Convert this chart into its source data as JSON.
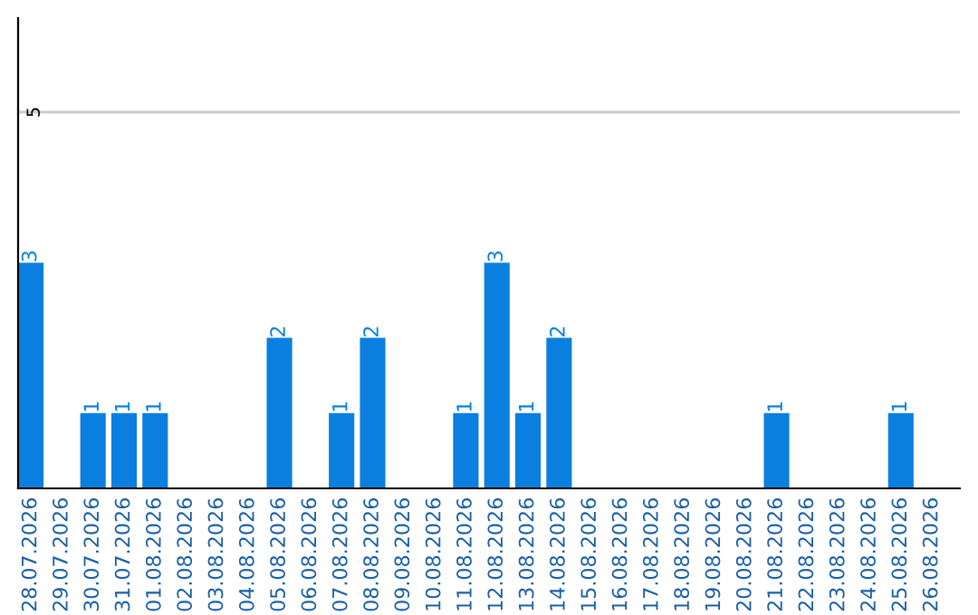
{
  "chart_data": {
    "type": "bar",
    "categories": [
      "28.07.2026",
      "29.07.2026",
      "30.07.2026",
      "31.07.2026",
      "01.08.2026",
      "02.08.2026",
      "03.08.2026",
      "04.08.2026",
      "05.08.2026",
      "06.08.2026",
      "07.08.2026",
      "08.08.2026",
      "09.08.2026",
      "10.08.2026",
      "11.08.2026",
      "12.08.2026",
      "13.08.2026",
      "14.08.2026",
      "15.08.2026",
      "16.08.2026",
      "17.08.2026",
      "18.08.2026",
      "19.08.2026",
      "20.08.2026",
      "21.08.2026",
      "22.08.2026",
      "23.08.2026",
      "24.08.2026",
      "25.08.2026",
      "26.08.2026"
    ],
    "values": [
      3,
      0,
      1,
      1,
      1,
      0,
      0,
      0,
      2,
      0,
      1,
      2,
      0,
      0,
      1,
      3,
      1,
      2,
      0,
      0,
      0,
      0,
      0,
      0,
      1,
      0,
      0,
      0,
      1,
      0
    ],
    "value_labels": [
      "3",
      null,
      "1",
      "1",
      "1",
      null,
      null,
      null,
      "2",
      null,
      "1",
      "2",
      null,
      null,
      "1",
      "3",
      "1",
      "2",
      null,
      null,
      null,
      null,
      null,
      null,
      "1",
      null,
      null,
      null,
      "1",
      null
    ],
    "color": "#0a7fe0",
    "ylim": [
      0,
      6.25
    ],
    "yticks": [
      5
    ],
    "grid": "y"
  }
}
